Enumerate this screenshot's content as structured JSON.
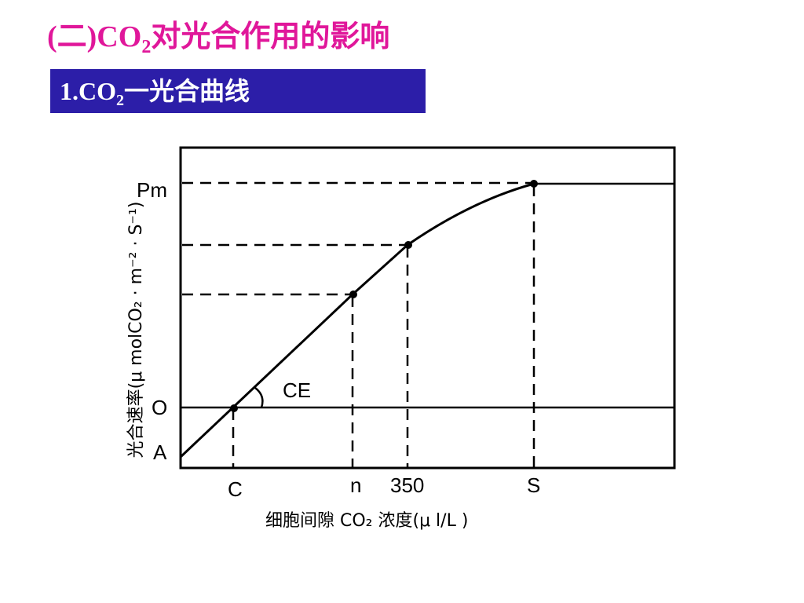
{
  "title": {
    "prefix": "(二)CO",
    "sub": "2",
    "suffix": "对光合作用的影响"
  },
  "section": {
    "prefix": "1.CO",
    "sub": "2",
    "suffix": "一光合曲线"
  },
  "diagram": {
    "y_axis_label": "光合速率(μ molCO₂ · m⁻² · S⁻¹)",
    "x_axis_label": "细胞间隙 CO₂ 浓度(μ l/L )",
    "y_marks": {
      "pm": "Pm",
      "o": "O",
      "a": "A"
    },
    "x_marks": {
      "c": "C",
      "n": "n",
      "v350": "350",
      "s": "S"
    },
    "angle_label": "CE"
  }
}
